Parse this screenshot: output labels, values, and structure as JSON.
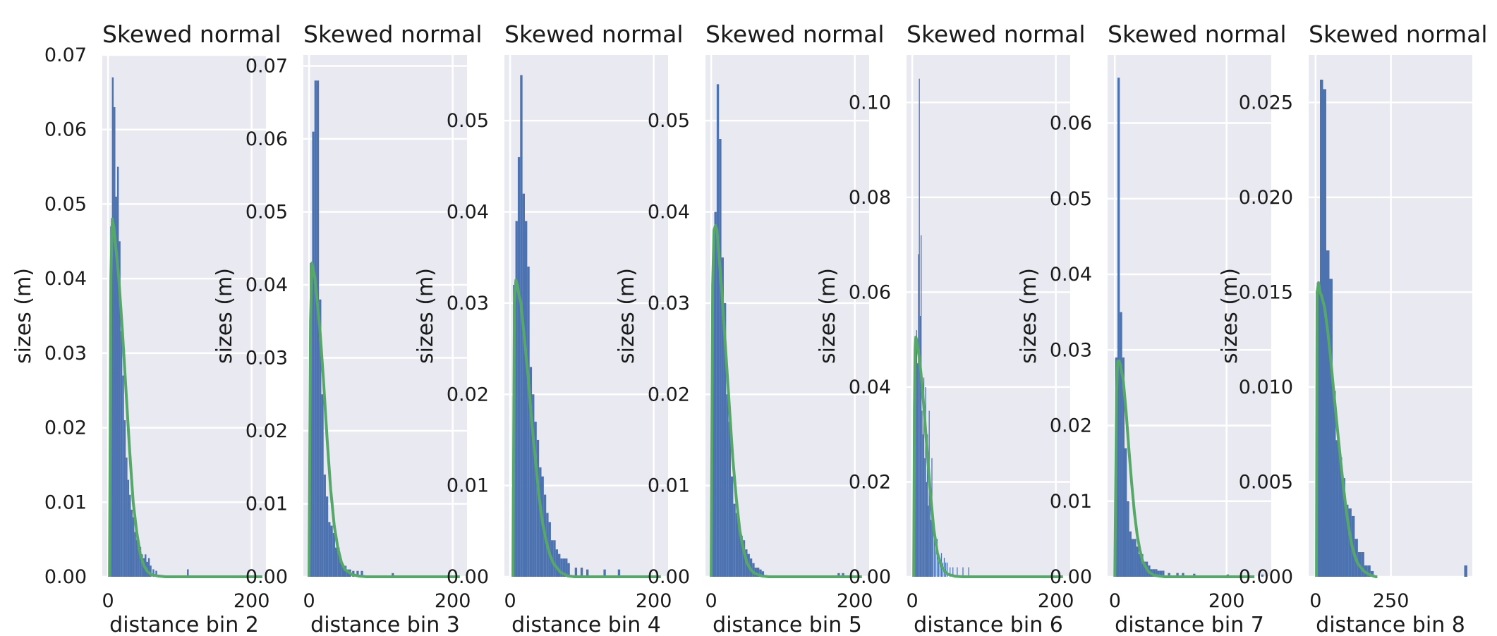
{
  "chart_data": [
    {
      "type": "bar",
      "title": "Skewed normal",
      "xlabel": "distance bin 2",
      "ylabel": "sizes (m)",
      "xlim": [
        -8,
        220
      ],
      "ylim": [
        0,
        0.07
      ],
      "xticks": [
        0,
        200
      ],
      "xtick_labels": [
        "0",
        "200"
      ],
      "yticks": [
        0.0,
        0.01,
        0.02,
        0.03,
        0.04,
        0.05,
        0.06,
        0.07
      ],
      "ytick_labels": [
        "0.00",
        "0.01",
        "0.02",
        "0.03",
        "0.04",
        "0.05",
        "0.06",
        "0.07"
      ],
      "bar_color": "#4c72b0",
      "line_color": "#55a868",
      "bin_width": 2.4,
      "bar_lefts": [
        3,
        5.4,
        7.8,
        10.2,
        12.6,
        15,
        17.4,
        19.8,
        22.2,
        24.6,
        27,
        29.4,
        31.8,
        34.2,
        36.6,
        39,
        41.4,
        43.8,
        46.2,
        48.6,
        51,
        53.4,
        55.8,
        58.2,
        62,
        66,
        110
      ],
      "bar_values": [
        0.047,
        0.067,
        0.063,
        0.051,
        0.055,
        0.045,
        0.033,
        0.027,
        0.021,
        0.016,
        0.013,
        0.011,
        0.009,
        0.008,
        0.006,
        0.005,
        0.004,
        0.004,
        0.003,
        0.0025,
        0.003,
        0.002,
        0.0025,
        0.0015,
        0.001,
        0.0008,
        0.001
      ],
      "fit_curve": {
        "x": [
          2,
          4,
          6,
          8,
          10,
          12,
          15,
          20,
          25,
          30,
          35,
          40,
          45,
          50,
          55,
          60,
          70,
          80,
          100,
          150,
          200,
          215
        ],
        "y": [
          0,
          0.04,
          0.048,
          0.047,
          0.045,
          0.043,
          0.04,
          0.033,
          0.025,
          0.017,
          0.01,
          0.006,
          0.003,
          0.0015,
          0.0007,
          0.0003,
          0.0001,
          0,
          0,
          0,
          0,
          0
        ]
      }
    },
    {
      "type": "bar",
      "title": "Skewed normal",
      "xlabel": "distance bin 3",
      "ylabel": "sizes (m)",
      "xlim": [
        -8,
        220
      ],
      "ylim": [
        0,
        0.0715
      ],
      "xticks": [
        0,
        200
      ],
      "xtick_labels": [
        "0",
        "200"
      ],
      "yticks": [
        0.0,
        0.01,
        0.02,
        0.03,
        0.04,
        0.05,
        0.06,
        0.07
      ],
      "ytick_labels": [
        "0.00",
        "0.01",
        "0.02",
        "0.03",
        "0.04",
        "0.05",
        "0.06",
        "0.07"
      ],
      "bar_color": "#4c72b0",
      "line_color": "#55a868",
      "bin_width": 3.2,
      "bar_lefts": [
        1,
        4.2,
        7.4,
        10.6,
        13.8,
        17,
        20.2,
        23.4,
        26.6,
        29.8,
        33,
        36.2,
        39.4,
        42.6,
        45.8,
        49,
        52.2,
        55.4,
        60,
        66,
        72,
        115
      ],
      "bar_values": [
        0.043,
        0.061,
        0.068,
        0.068,
        0.038,
        0.025,
        0.014,
        0.011,
        0.0075,
        0.007,
        0.006,
        0.004,
        0.004,
        0.002,
        0.0015,
        0.0015,
        0.001,
        0.001,
        0.0008,
        0.0008,
        0.0008,
        0.0005
      ],
      "fit_curve": {
        "x": [
          0,
          2,
          4,
          6,
          8,
          10,
          15,
          20,
          25,
          30,
          35,
          40,
          45,
          50,
          60,
          70,
          80,
          100,
          150,
          200,
          210
        ],
        "y": [
          0,
          0.035,
          0.043,
          0.042,
          0.041,
          0.039,
          0.034,
          0.027,
          0.019,
          0.012,
          0.007,
          0.004,
          0.002,
          0.001,
          0.0003,
          0.0001,
          0,
          0,
          0,
          0,
          0
        ]
      }
    },
    {
      "type": "bar",
      "title": "Skewed normal",
      "xlabel": "distance bin 4",
      "ylabel": "sizes (m)",
      "xlim": [
        -8,
        220
      ],
      "ylim": [
        0,
        0.0572
      ],
      "xticks": [
        0,
        200
      ],
      "xtick_labels": [
        "0",
        "200"
      ],
      "yticks": [
        0.0,
        0.01,
        0.02,
        0.03,
        0.04,
        0.05
      ],
      "ytick_labels": [
        "0.00",
        "0.01",
        "0.02",
        "0.03",
        "0.04",
        "0.05"
      ],
      "bar_color": "#4c72b0",
      "line_color": "#55a868",
      "bin_width": 3.3,
      "bar_lefts": [
        4,
        7.3,
        10.6,
        13.9,
        17.2,
        20.5,
        23.8,
        27.1,
        30.4,
        33.7,
        37,
        40.3,
        43.6,
        46.9,
        50.2,
        53.5,
        56.8,
        60.1,
        63.4,
        66.7,
        70,
        73.3,
        76.6,
        79.9,
        90,
        98,
        106,
        130,
        150
      ],
      "bar_values": [
        0.032,
        0.039,
        0.046,
        0.055,
        0.042,
        0.039,
        0.034,
        0.023,
        0.02,
        0.017,
        0.015,
        0.012,
        0.011,
        0.009,
        0.007,
        0.006,
        0.004,
        0.004,
        0.003,
        0.0025,
        0.002,
        0.002,
        0.002,
        0.0015,
        0.001,
        0.001,
        0.0008,
        0.0008,
        0.0008
      ],
      "fit_curve": {
        "x": [
          4,
          6,
          8,
          10,
          12,
          15,
          20,
          25,
          30,
          35,
          40,
          45,
          50,
          55,
          60,
          70,
          80,
          90,
          100,
          150,
          200,
          210
        ],
        "y": [
          0,
          0.03,
          0.0325,
          0.032,
          0.031,
          0.03,
          0.026,
          0.022,
          0.017,
          0.013,
          0.009,
          0.006,
          0.004,
          0.0025,
          0.0015,
          0.0005,
          0.0001,
          0,
          0,
          0,
          0,
          0
        ]
      }
    },
    {
      "type": "bar",
      "title": "Skewed normal",
      "xlabel": "distance bin 5",
      "ylabel": "sizes (m)",
      "xlim": [
        -8,
        220
      ],
      "ylim": [
        0,
        0.0572
      ],
      "xticks": [
        0,
        200
      ],
      "xtick_labels": [
        "0",
        "200"
      ],
      "yticks": [
        0.0,
        0.01,
        0.02,
        0.03,
        0.04,
        0.05
      ],
      "ytick_labels": [
        "0.00",
        "0.01",
        "0.02",
        "0.03",
        "0.04",
        "0.05"
      ],
      "bar_color": "#4c72b0",
      "line_color": "#55a868",
      "bin_width": 3.3,
      "bar_lefts": [
        1,
        4.3,
        7.6,
        10.9,
        14.2,
        17.5,
        20.8,
        24.1,
        27.4,
        30.7,
        34,
        37.3,
        40.6,
        43.9,
        47.2,
        50.5,
        53.8,
        57.1,
        60.4,
        63.7,
        67,
        70.3,
        176,
        182
      ],
      "bar_values": [
        0.034,
        0.04,
        0.054,
        0.048,
        0.035,
        0.03,
        0.02,
        0.017,
        0.011,
        0.008,
        0.007,
        0.006,
        0.0045,
        0.004,
        0.003,
        0.0025,
        0.002,
        0.0015,
        0.001,
        0.001,
        0.0008,
        0.0006,
        0.0004,
        0.0004
      ],
      "fit_curve": {
        "x": [
          0,
          2,
          4,
          6,
          8,
          10,
          12,
          15,
          20,
          25,
          30,
          35,
          40,
          45,
          50,
          55,
          60,
          70,
          80,
          100,
          150,
          200,
          210
        ],
        "y": [
          0,
          0.032,
          0.038,
          0.0385,
          0.038,
          0.036,
          0.034,
          0.031,
          0.025,
          0.019,
          0.013,
          0.0085,
          0.005,
          0.003,
          0.0015,
          0.0008,
          0.0004,
          0.0001,
          0,
          0,
          0,
          0,
          0
        ]
      }
    },
    {
      "type": "bar",
      "title": "Skewed normal",
      "xlabel": "distance bin 6",
      "ylabel": "sizes (m)",
      "xlim": [
        -8,
        220
      ],
      "ylim": [
        0,
        0.11
      ],
      "xticks": [
        0,
        200
      ],
      "xtick_labels": [
        "0",
        "200"
      ],
      "yticks": [
        0.0,
        0.02,
        0.04,
        0.06,
        0.08,
        0.1
      ],
      "ytick_labels": [
        "0.00",
        "0.02",
        "0.04",
        "0.06",
        "0.08",
        "0.10"
      ],
      "bar_color": "#4c72b0",
      "line_color": "#55a868",
      "bin_width": 1.25,
      "bar_lefts": [
        3,
        4.25,
        5.5,
        6.75,
        8,
        9.25,
        10.5,
        11.75,
        13,
        14.25,
        15.5,
        16.75,
        18,
        19.25,
        20.5,
        21.75,
        23,
        24.25,
        25.5,
        26.75,
        28,
        30,
        32,
        34,
        36,
        38,
        40,
        42,
        44,
        46,
        48,
        52,
        56,
        62,
        70,
        78
      ],
      "bar_values": [
        0.03,
        0.045,
        0.052,
        0.045,
        0.068,
        0.105,
        0.055,
        0.072,
        0.035,
        0.03,
        0.042,
        0.025,
        0.04,
        0.02,
        0.03,
        0.015,
        0.035,
        0.02,
        0.012,
        0.025,
        0.01,
        0.008,
        0.006,
        0.008,
        0.005,
        0.004,
        0.005,
        0.003,
        0.004,
        0.003,
        0.003,
        0.002,
        0.002,
        0.002,
        0.002,
        0.002
      ],
      "fit_curve": {
        "x": [
          2,
          3,
          4,
          5,
          6,
          8,
          10,
          12,
          15,
          20,
          25,
          30,
          35,
          40,
          45,
          50,
          60,
          70,
          80,
          100,
          150,
          200,
          210
        ],
        "y": [
          0,
          0.035,
          0.048,
          0.0505,
          0.05,
          0.048,
          0.046,
          0.043,
          0.038,
          0.028,
          0.018,
          0.01,
          0.005,
          0.0025,
          0.0012,
          0.0005,
          0.0001,
          0,
          0,
          0,
          0,
          0,
          0
        ]
      }
    },
    {
      "type": "bar",
      "title": "Skewed normal",
      "xlabel": "distance bin 7",
      "ylabel": "sizes (m)",
      "xlim": [
        -13,
        280
      ],
      "ylim": [
        0,
        0.069
      ],
      "xticks": [
        0,
        200
      ],
      "xtick_labels": [
        "0",
        "200"
      ],
      "yticks": [
        0.0,
        0.01,
        0.02,
        0.03,
        0.04,
        0.05,
        0.06
      ],
      "ytick_labels": [
        "0.00",
        "0.01",
        "0.02",
        "0.03",
        "0.04",
        "0.05",
        "0.06"
      ],
      "bar_color": "#4c72b0",
      "line_color": "#55a868",
      "bin_width": 4.2,
      "bar_lefts": [
        0.5,
        4.7,
        8.9,
        13.1,
        17.3,
        21.5,
        25.7,
        29.9,
        34.1,
        38.3,
        42.5,
        46.7,
        50.9,
        55.1,
        59.3,
        63.5,
        67.7,
        71.9,
        76.1,
        80.3,
        84.5,
        95,
        110,
        120,
        140,
        200,
        262
      ],
      "bar_values": [
        0.029,
        0.066,
        0.035,
        0.029,
        0.017,
        0.01,
        0.006,
        0.005,
        0.005,
        0.004,
        0.003,
        0.003,
        0.002,
        0.002,
        0.0015,
        0.001,
        0.001,
        0.001,
        0.0008,
        0.0008,
        0.0008,
        0.0005,
        0.0005,
        0.0005,
        0.0004,
        0.0003,
        0.0003
      ],
      "fit_curve": {
        "x": [
          0,
          3,
          5,
          8,
          10,
          15,
          20,
          25,
          30,
          35,
          40,
          45,
          50,
          60,
          70,
          80,
          90,
          100,
          120,
          150,
          200,
          250
        ],
        "y": [
          0,
          0.024,
          0.0285,
          0.0285,
          0.028,
          0.026,
          0.022,
          0.017,
          0.0125,
          0.0085,
          0.0055,
          0.0035,
          0.002,
          0.0007,
          0.0002,
          0.0001,
          0,
          0,
          0,
          0,
          0,
          0
        ]
      }
    },
    {
      "type": "bar",
      "title": "Skewed normal",
      "xlabel": "distance bin 8",
      "ylabel": "sizes (m)",
      "xlim": [
        -23,
        520
      ],
      "ylim": [
        0,
        0.0275
      ],
      "xticks": [
        0,
        250
      ],
      "xtick_labels": [
        "0",
        "250"
      ],
      "yticks": [
        0.0,
        0.005,
        0.01,
        0.015,
        0.02,
        0.025
      ],
      "ytick_labels": [
        "0.000",
        "0.005",
        "0.010",
        "0.015",
        "0.020",
        "0.025"
      ],
      "bar_color": "#4c72b0",
      "line_color": "#55a868",
      "bin_width": 10.5,
      "bar_lefts": [
        4,
        14.5,
        25,
        35.5,
        46,
        56.5,
        67,
        77.5,
        88,
        98.5,
        109,
        119.5,
        130,
        140.5,
        151,
        161.5,
        172,
        182.5,
        493
      ],
      "bar_values": [
        0.0155,
        0.0262,
        0.0257,
        0.0172,
        0.0157,
        0.0098,
        0.0072,
        0.0063,
        0.0052,
        0.0038,
        0.0036,
        0.0032,
        0.002,
        0.0013,
        0.0013,
        0.0006,
        0.0006,
        0.0003,
        0.0006
      ],
      "fit_curve": {
        "x": [
          3,
          5,
          10,
          15,
          20,
          30,
          40,
          50,
          60,
          70,
          80,
          90,
          100,
          110,
          120,
          130,
          140,
          160,
          180,
          200,
          205
        ],
        "y": [
          0,
          0.015,
          0.0155,
          0.015,
          0.0148,
          0.0142,
          0.013,
          0.0115,
          0.0098,
          0.0082,
          0.0066,
          0.0051,
          0.0037,
          0.0026,
          0.0017,
          0.0011,
          0.0007,
          0.0003,
          0.0001,
          0,
          0
        ]
      }
    }
  ]
}
